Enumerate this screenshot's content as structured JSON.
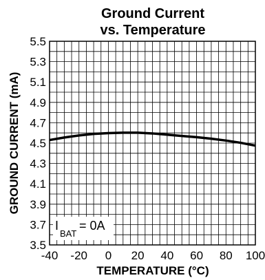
{
  "chart_data": {
    "type": "line",
    "title_line1": "Ground Current",
    "title_line2": "vs. Temperature",
    "xlabel": "TEMPERATURE (°C)",
    "ylabel": "GROUND CURRENT (mA)",
    "xlim": [
      -40,
      100
    ],
    "ylim": [
      3.5,
      5.5
    ],
    "x_ticks": [
      "-40",
      "-20",
      "0",
      "20",
      "40",
      "60",
      "80",
      "100"
    ],
    "y_ticks": [
      "5.5",
      "5.3",
      "5.1",
      "4.9",
      "4.7",
      "4.5",
      "4.3",
      "4.1",
      "3.9",
      "3.7",
      "3.5"
    ],
    "grid": true,
    "annotation": {
      "main": "I",
      "sub": "BAT",
      "rest": " = 0A"
    },
    "series": [
      {
        "x": [
          -40,
          -30,
          -20,
          -10,
          0,
          10,
          20,
          30,
          40,
          50,
          60,
          70,
          80,
          90,
          100
        ],
        "y": [
          4.53,
          4.555,
          4.575,
          4.59,
          4.598,
          4.602,
          4.602,
          4.595,
          4.583,
          4.57,
          4.558,
          4.543,
          4.525,
          4.503,
          4.475
        ]
      }
    ]
  }
}
